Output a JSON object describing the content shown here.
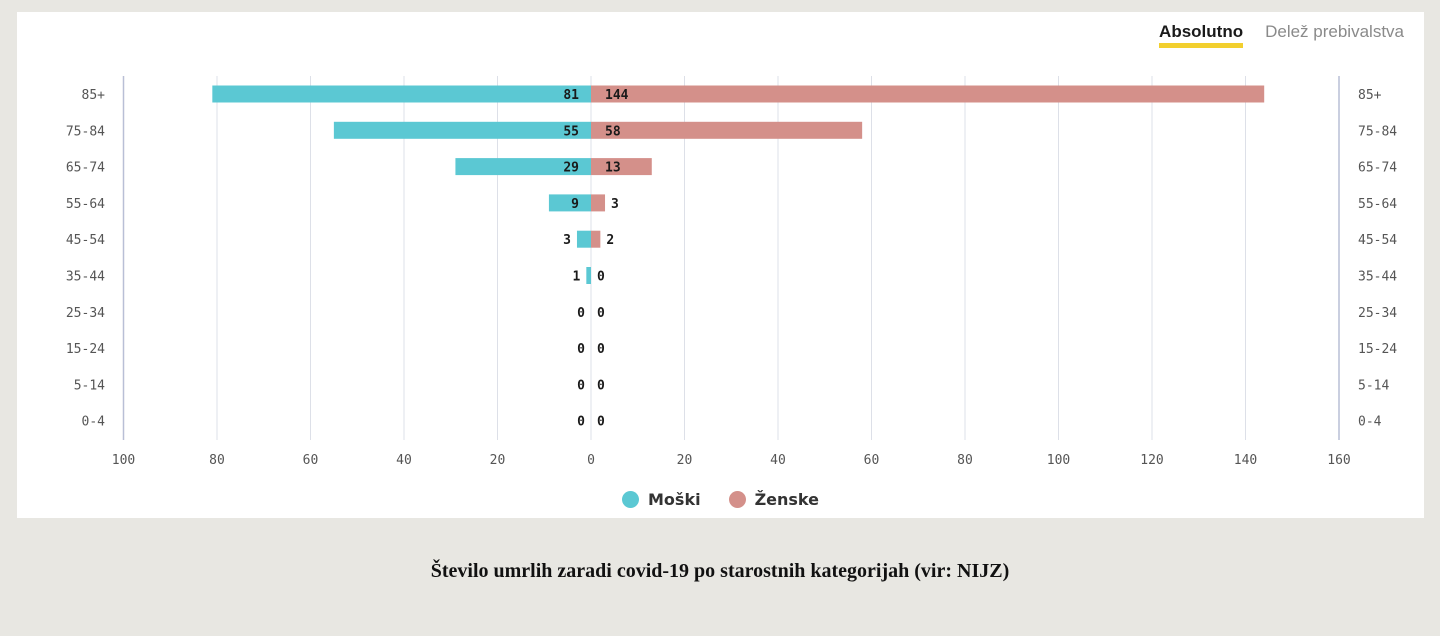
{
  "toggle": {
    "absolute_label": "Absolutno",
    "share_label": "Delež prebivalstva"
  },
  "caption": "Število umrlih zaradi covid-19 po starostnih kategorijah (vir: NIJZ)",
  "chart_data": {
    "type": "bar",
    "orientation": "horizontal-diverging",
    "categories": [
      "85+",
      "75-84",
      "65-74",
      "55-64",
      "45-54",
      "35-44",
      "25-34",
      "15-24",
      "5-14",
      "0-4"
    ],
    "series": [
      {
        "name": "Moški",
        "values": [
          81,
          55,
          29,
          9,
          3,
          1,
          0,
          0,
          0,
          0
        ],
        "color": "#5bc8d3",
        "side": "left"
      },
      {
        "name": "Ženske",
        "values": [
          144,
          58,
          13,
          3,
          2,
          0,
          0,
          0,
          0,
          0
        ],
        "color": "#d4908a",
        "side": "right"
      }
    ],
    "xticks_left": [
      "100",
      "80",
      "60",
      "40",
      "20"
    ],
    "xticks_right": [
      "0",
      "20",
      "40",
      "60",
      "80",
      "100",
      "120",
      "140",
      "160"
    ],
    "xlim_left": [
      0,
      100
    ],
    "xlim_right": [
      0,
      160
    ],
    "grid": true,
    "legend_position": "bottom-center"
  }
}
